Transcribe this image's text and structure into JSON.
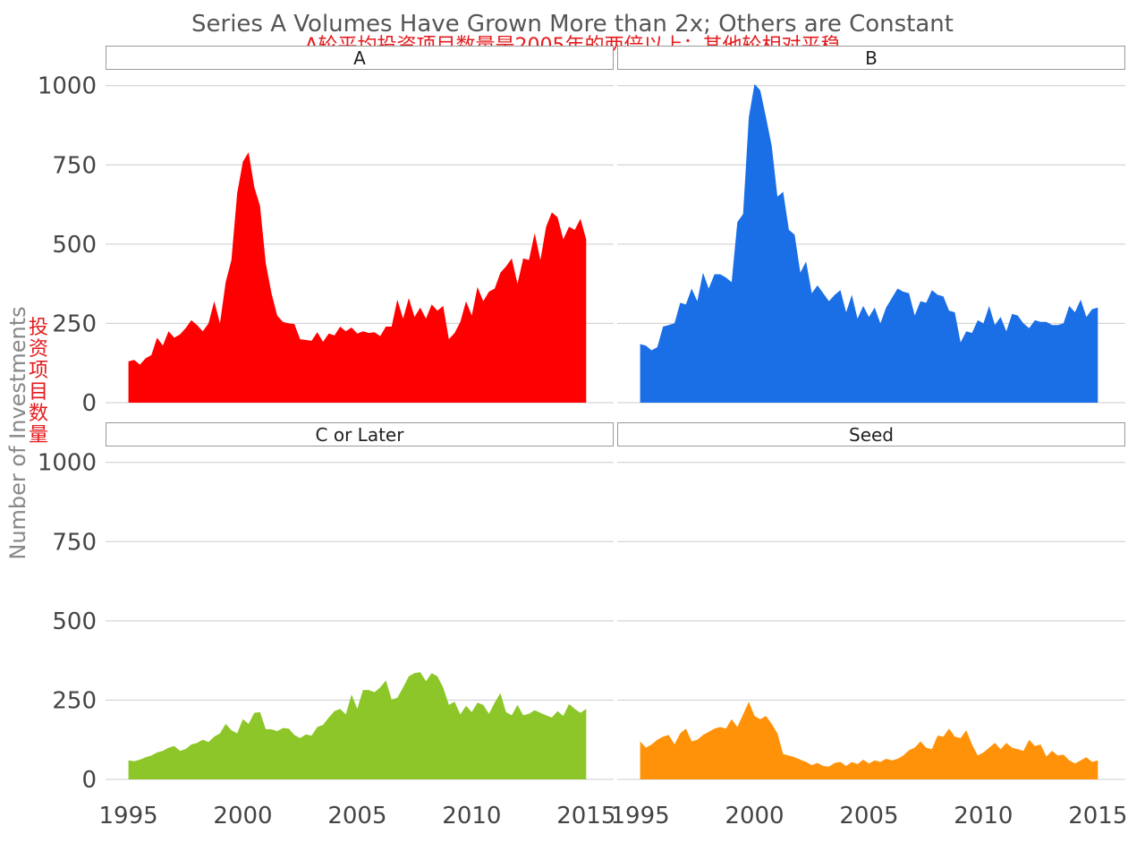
{
  "title": "Series A Volumes Have Grown More than 2x; Others are Constant",
  "title_zh": "A轮平均投资项目数量是2005年的两倍以上；其他轮相对平稳",
  "ylabel": "Number of Investments",
  "ylabel_zh": "投资项目数量",
  "chart_data": {
    "type": "area",
    "title": "Series A Volumes Have Grown More than 2x; Others are Constant",
    "subtitle": "A轮平均投资项目数量是2005年的两倍以上；其他轮相对平稳",
    "ylabel": "Number of Investments",
    "ylim": [
      0,
      1050
    ],
    "xlim": [
      1994,
      2016.2
    ],
    "y_ticks": [
      0,
      250,
      500,
      750,
      1000
    ],
    "x_ticks": [
      1995,
      2000,
      2005,
      2010,
      2015
    ],
    "grid": true,
    "legend": "none",
    "facets": [
      {
        "name": "A",
        "color": "#ff0000",
        "x": [
          1995.0,
          1995.25,
          1995.5,
          1995.75,
          1996.0,
          1996.25,
          1996.5,
          1996.75,
          1997.0,
          1997.25,
          1997.5,
          1997.75,
          1998.0,
          1998.25,
          1998.5,
          1998.75,
          1999.0,
          1999.25,
          1999.5,
          1999.75,
          2000.0,
          2000.25,
          2000.5,
          2000.75,
          2001.0,
          2001.25,
          2001.5,
          2001.75,
          2002.0,
          2002.25,
          2002.5,
          2002.75,
          2003.0,
          2003.25,
          2003.5,
          2003.75,
          2004.0,
          2004.25,
          2004.5,
          2004.75,
          2005.0,
          2005.25,
          2005.5,
          2005.75,
          2006.0,
          2006.25,
          2006.5,
          2006.75,
          2007.0,
          2007.25,
          2007.5,
          2007.75,
          2008.0,
          2008.25,
          2008.5,
          2008.75,
          2009.0,
          2009.25,
          2009.5,
          2009.75,
          2010.0,
          2010.25,
          2010.5,
          2010.75,
          2011.0,
          2011.25,
          2011.5,
          2011.75,
          2012.0,
          2012.25,
          2012.5,
          2012.75,
          2013.0,
          2013.25,
          2013.5,
          2013.75,
          2014.0,
          2014.25,
          2014.5,
          2014.75,
          2015.0
        ],
        "values": [
          130,
          135,
          120,
          140,
          150,
          205,
          180,
          225,
          205,
          215,
          235,
          260,
          245,
          225,
          250,
          320,
          250,
          380,
          450,
          660,
          760,
          790,
          680,
          620,
          440,
          345,
          275,
          255,
          250,
          248,
          200,
          198,
          195,
          222,
          192,
          218,
          212,
          240,
          225,
          237,
          218,
          225,
          220,
          222,
          210,
          240,
          240,
          325,
          265,
          330,
          270,
          300,
          265,
          310,
          290,
          305,
          200,
          220,
          255,
          320,
          275,
          365,
          320,
          350,
          360,
          410,
          430,
          455,
          375,
          455,
          450,
          535,
          450,
          555,
          600,
          585,
          515,
          555,
          545,
          580,
          515
        ]
      },
      {
        "name": "B",
        "color": "#1a6ee6",
        "x": [
          1995.0,
          1995.25,
          1995.5,
          1995.75,
          1996.0,
          1996.25,
          1996.5,
          1996.75,
          1997.0,
          1997.25,
          1997.5,
          1997.75,
          1998.0,
          1998.25,
          1998.5,
          1998.75,
          1999.0,
          1999.25,
          1999.5,
          1999.75,
          2000.0,
          2000.25,
          2000.5,
          2000.75,
          2001.0,
          2001.25,
          2001.5,
          2001.75,
          2002.0,
          2002.25,
          2002.5,
          2002.75,
          2003.0,
          2003.25,
          2003.5,
          2003.75,
          2004.0,
          2004.25,
          2004.5,
          2004.75,
          2005.0,
          2005.25,
          2005.5,
          2005.75,
          2006.0,
          2006.25,
          2006.5,
          2006.75,
          2007.0,
          2007.25,
          2007.5,
          2007.75,
          2008.0,
          2008.25,
          2008.5,
          2008.75,
          2009.0,
          2009.25,
          2009.5,
          2009.75,
          2010.0,
          2010.25,
          2010.5,
          2010.75,
          2011.0,
          2011.25,
          2011.5,
          2011.75,
          2012.0,
          2012.25,
          2012.5,
          2012.75,
          2013.0,
          2013.25,
          2013.5,
          2013.75,
          2014.0,
          2014.25,
          2014.5,
          2014.75,
          2015.0
        ],
        "values": [
          185,
          180,
          165,
          175,
          240,
          245,
          250,
          315,
          310,
          360,
          320,
          410,
          360,
          405,
          405,
          395,
          380,
          570,
          595,
          900,
          1005,
          985,
          900,
          810,
          650,
          665,
          545,
          530,
          410,
          445,
          345,
          370,
          345,
          320,
          340,
          355,
          285,
          340,
          265,
          305,
          270,
          300,
          250,
          300,
          330,
          360,
          350,
          345,
          275,
          320,
          315,
          355,
          340,
          335,
          290,
          285,
          190,
          225,
          220,
          260,
          250,
          305,
          245,
          270,
          225,
          280,
          275,
          250,
          235,
          260,
          255,
          255,
          245,
          245,
          250,
          305,
          285,
          325,
          270,
          295,
          300
        ]
      },
      {
        "name": "C or Later",
        "color": "#8cc628",
        "x": [
          1995.0,
          1995.25,
          1995.5,
          1995.75,
          1996.0,
          1996.25,
          1996.5,
          1996.75,
          1997.0,
          1997.25,
          1997.5,
          1997.75,
          1998.0,
          1998.25,
          1998.5,
          1998.75,
          1999.0,
          1999.25,
          1999.5,
          1999.75,
          2000.0,
          2000.25,
          2000.5,
          2000.75,
          2001.0,
          2001.25,
          2001.5,
          2001.75,
          2002.0,
          2002.25,
          2002.5,
          2002.75,
          2003.0,
          2003.25,
          2003.5,
          2003.75,
          2004.0,
          2004.25,
          2004.5,
          2004.75,
          2005.0,
          2005.25,
          2005.5,
          2005.75,
          2006.0,
          2006.25,
          2006.5,
          2006.75,
          2007.0,
          2007.25,
          2007.5,
          2007.75,
          2008.0,
          2008.25,
          2008.5,
          2008.75,
          2009.0,
          2009.25,
          2009.5,
          2009.75,
          2010.0,
          2010.25,
          2010.5,
          2010.75,
          2011.0,
          2011.25,
          2011.5,
          2011.75,
          2012.0,
          2012.25,
          2012.5,
          2012.75,
          2013.0,
          2013.25,
          2013.5,
          2013.75,
          2014.0,
          2014.25,
          2014.5,
          2014.75,
          2015.0
        ],
        "values": [
          60,
          57,
          62,
          70,
          75,
          85,
          90,
          100,
          105,
          90,
          95,
          110,
          115,
          125,
          118,
          135,
          145,
          175,
          155,
          145,
          190,
          175,
          210,
          212,
          158,
          158,
          152,
          162,
          160,
          140,
          130,
          142,
          138,
          165,
          172,
          195,
          215,
          222,
          205,
          268,
          222,
          282,
          282,
          275,
          290,
          312,
          252,
          257,
          290,
          325,
          335,
          338,
          310,
          335,
          325,
          290,
          235,
          245,
          205,
          232,
          212,
          242,
          235,
          207,
          242,
          272,
          212,
          202,
          235,
          202,
          207,
          218,
          210,
          202,
          195,
          215,
          200,
          238,
          222,
          210,
          222
        ]
      },
      {
        "name": "Seed",
        "color": "#ff9208",
        "x": [
          1995.0,
          1995.25,
          1995.5,
          1995.75,
          1996.0,
          1996.25,
          1996.5,
          1996.75,
          1997.0,
          1997.25,
          1997.5,
          1997.75,
          1998.0,
          1998.25,
          1998.5,
          1998.75,
          1999.0,
          1999.25,
          1999.5,
          1999.75,
          2000.0,
          2000.25,
          2000.5,
          2000.75,
          2001.0,
          2001.25,
          2001.5,
          2001.75,
          2002.0,
          2002.25,
          2002.5,
          2002.75,
          2003.0,
          2003.25,
          2003.5,
          2003.75,
          2004.0,
          2004.25,
          2004.5,
          2004.75,
          2005.0,
          2005.25,
          2005.5,
          2005.75,
          2006.0,
          2006.25,
          2006.5,
          2006.75,
          2007.0,
          2007.25,
          2007.5,
          2007.75,
          2008.0,
          2008.25,
          2008.5,
          2008.75,
          2009.0,
          2009.25,
          2009.5,
          2009.75,
          2010.0,
          2010.25,
          2010.5,
          2010.75,
          2011.0,
          2011.25,
          2011.5,
          2011.75,
          2012.0,
          2012.25,
          2012.5,
          2012.75,
          2013.0,
          2013.25,
          2013.5,
          2013.75,
          2014.0,
          2014.25,
          2014.5,
          2014.75,
          2015.0
        ],
        "values": [
          120,
          100,
          110,
          125,
          135,
          140,
          110,
          145,
          160,
          120,
          125,
          140,
          150,
          160,
          165,
          160,
          190,
          165,
          205,
          245,
          200,
          190,
          200,
          175,
          145,
          80,
          75,
          70,
          62,
          55,
          45,
          52,
          42,
          40,
          52,
          55,
          42,
          55,
          48,
          62,
          50,
          60,
          55,
          65,
          60,
          65,
          75,
          92,
          100,
          120,
          100,
          95,
          138,
          135,
          160,
          135,
          130,
          155,
          110,
          75,
          85,
          100,
          115,
          95,
          115,
          100,
          95,
          90,
          125,
          105,
          110,
          72,
          90,
          75,
          78,
          60,
          50,
          60,
          70,
          55,
          60
        ]
      }
    ]
  }
}
